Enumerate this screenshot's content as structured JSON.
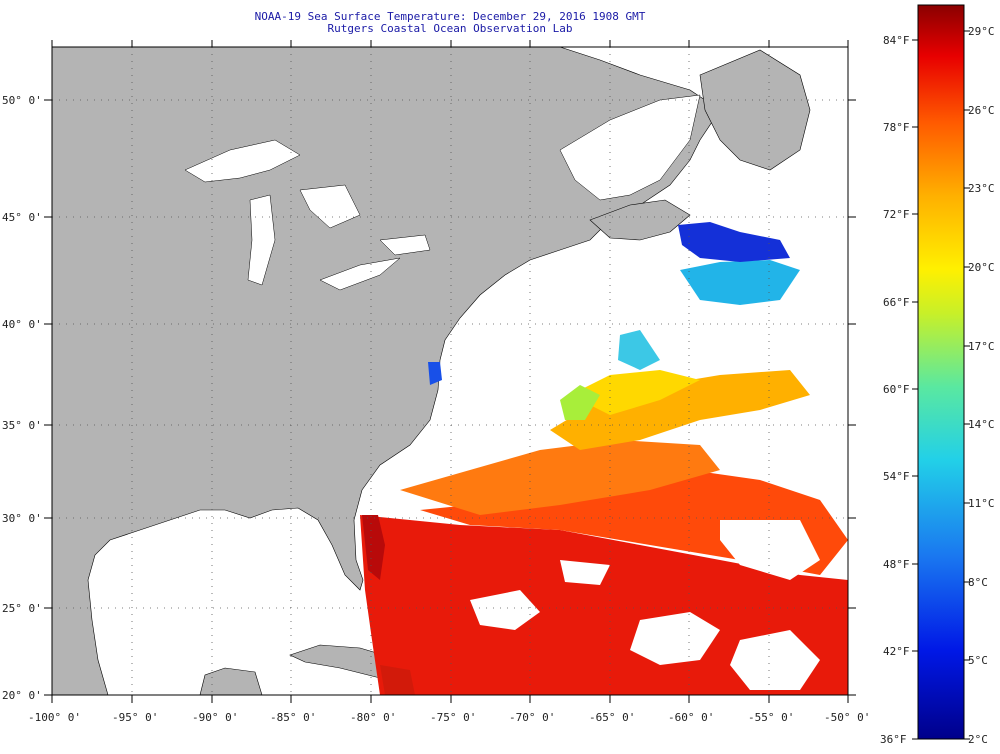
{
  "title": {
    "line1": "NOAA-19 Sea Surface Temperature:  December 29, 2016 1908 GMT",
    "line2": "Rutgers Coastal Ocean Observation Lab"
  },
  "map": {
    "lat_labels": [
      "50° 0'",
      "45° 0'",
      "40° 0'",
      "35° 0'",
      "30° 0'",
      "25° 0'",
      "20° 0'"
    ],
    "lon_labels": [
      "-100° 0'",
      "-95° 0'",
      "-90° 0'",
      "-85° 0'",
      "-80° 0'",
      "-75° 0'",
      "-70° 0'",
      "-65° 0'",
      "-60° 0'",
      "-55° 0'",
      "-50° 0'"
    ]
  },
  "colorbar": {
    "fahrenheit_labels": [
      "84°F",
      "78°F",
      "72°F",
      "66°F",
      "60°F",
      "54°F",
      "48°F",
      "42°F",
      "36°F"
    ],
    "celsius_labels": [
      "29°C",
      "26°C",
      "23°C",
      "20°C",
      "17°C",
      "14°C",
      "11°C",
      "8°C",
      "5°C",
      "2°C"
    ],
    "range_c": [
      2,
      30
    ]
  },
  "colors": {
    "land": "#b4b4b4",
    "title": "#1a1aa6",
    "grid": "#555555"
  }
}
